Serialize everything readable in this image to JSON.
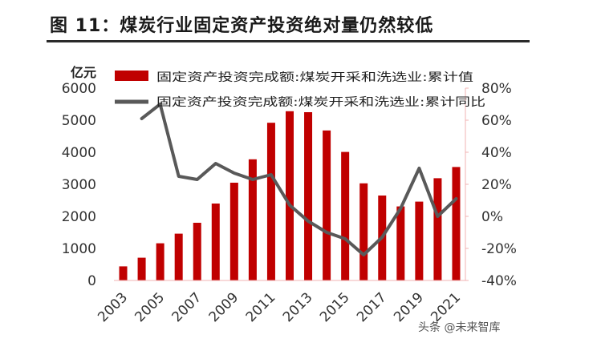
{
  "header": {
    "title": "图 11：煤炭行业固定资产投资绝对量仍然较低"
  },
  "watermark": "头条 @未来智库",
  "chart_data": {
    "type": "bar",
    "x": [
      2003,
      2004,
      2005,
      2006,
      2007,
      2008,
      2009,
      2010,
      2011,
      2012,
      2013,
      2014,
      2015,
      2016,
      2017,
      2018,
      2019,
      2020,
      2021
    ],
    "x_tick_labels": [
      "2003",
      "2005",
      "2007",
      "2009",
      "2011",
      "2013",
      "2015",
      "2017",
      "2019",
      "2021"
    ],
    "series": [
      {
        "name": "固定资产投资完成额:煤炭开采和洗选业:累计值",
        "type": "bar",
        "axis": "left",
        "color": "#c00000",
        "values": [
          440,
          710,
          1160,
          1460,
          1800,
          2400,
          3050,
          3780,
          4920,
          5280,
          5250,
          4680,
          4010,
          3030,
          2650,
          2310,
          2460,
          3190,
          3540
        ]
      },
      {
        "name": "固定资产投资完成额:煤炭开采和洗选业:累计同比",
        "type": "line",
        "axis": "right",
        "color": "#595959",
        "values": [
          null,
          61,
          70,
          25,
          23,
          33,
          27,
          23,
          26,
          7,
          -3,
          -10,
          -14,
          -24,
          -13,
          5,
          30,
          0,
          11
        ]
      }
    ],
    "left_axis": {
      "label": "亿元",
      "range": [
        0,
        6000
      ],
      "ticks": [
        "0",
        "1000",
        "2000",
        "3000",
        "4000",
        "5000",
        "6000"
      ]
    },
    "right_axis": {
      "range": [
        -40,
        80
      ],
      "ticks": [
        "-40%",
        "-20%",
        "0%",
        "20%",
        "40%",
        "60%",
        "80%"
      ]
    },
    "legend_position": "top",
    "grid": false
  }
}
